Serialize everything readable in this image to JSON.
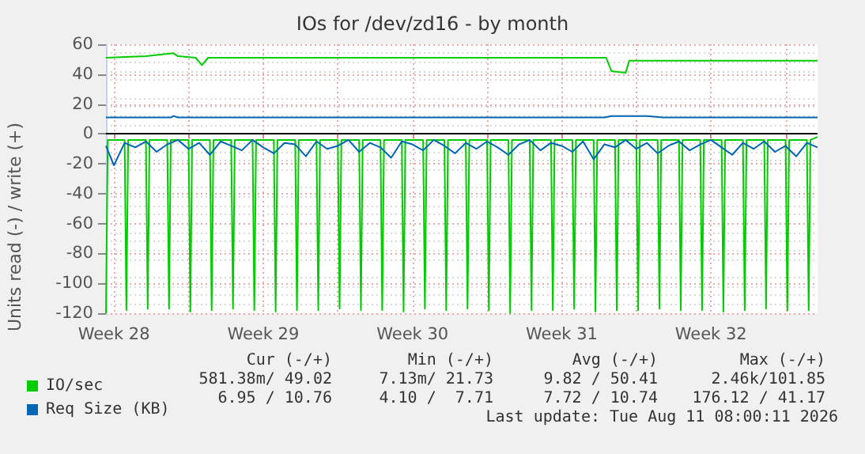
{
  "chart_data": {
    "type": "line",
    "title": "IOs for /dev/zd16 - by month",
    "ylabel": "Units read (-) / write (+)",
    "xlim": [
      "2026-07-09T03:00",
      "2026-08-11T12:00"
    ],
    "xticks": [
      {
        "value": "2026-07-09T12:00",
        "label": "Week 28"
      },
      {
        "value": "2026-07-13T00:00",
        "label": null
      },
      {
        "value": "2026-07-16T12:00",
        "label": "Week 29"
      },
      {
        "value": "2026-07-20T00:00",
        "label": null
      },
      {
        "value": "2026-07-23T12:00",
        "label": "Week 30"
      },
      {
        "value": "2026-07-27T00:00",
        "label": null
      },
      {
        "value": "2026-07-30T12:00",
        "label": "Week 31"
      },
      {
        "value": "2026-08-03T00:00",
        "label": null
      },
      {
        "value": "2026-08-06T12:00",
        "label": "Week 32"
      },
      {
        "value": "2026-08-10T00:00",
        "label": null
      }
    ],
    "ylim": [
      -120,
      60
    ],
    "yticks": [
      -120,
      -100,
      -80,
      -60,
      -40,
      -20,
      0,
      20,
      40,
      60
    ],
    "grid": true,
    "legend": "bottom left",
    "marker": "none",
    "line_style": "solid",
    "ref_lines": [
      {
        "axis": "y",
        "value": 0,
        "color": "#000000"
      }
    ],
    "annotations": [
      "Cur (-/+)",
      "Min (-/+)",
      "Avg (-/+)",
      "Max (-/+)",
      "581.38m/ 49.02",
      "7.13m/ 21.73",
      "9.82 / 50.41",
      "2.46k/101.85",
      "6.95 / 10.76",
      "4.10 /  7.71",
      "7.72 / 10.74",
      "176.12 / 41.17",
      "Last update: Tue Aug 11 08:00:11 2026"
    ],
    "x": [
      "2026-07-09T03:00",
      "2026-07-09T12:00",
      "2026-07-10T00:00",
      "2026-07-10T12:00",
      "2026-07-11T00:00",
      "2026-07-11T12:00",
      "2026-07-12T00:00",
      "2026-07-12T12:00",
      "2026-07-13T00:00",
      "2026-07-13T12:00",
      "2026-07-14T00:00",
      "2026-07-14T12:00",
      "2026-07-15T00:00",
      "2026-07-15T12:00",
      "2026-07-16T00:00",
      "2026-07-16T12:00",
      "2026-07-17T00:00",
      "2026-07-17T12:00",
      "2026-07-18T00:00",
      "2026-07-18T12:00",
      "2026-07-19T00:00",
      "2026-07-19T12:00",
      "2026-07-20T00:00",
      "2026-07-20T12:00",
      "2026-07-21T00:00",
      "2026-07-21T12:00",
      "2026-07-22T00:00",
      "2026-07-22T12:00",
      "2026-07-23T00:00",
      "2026-07-23T12:00",
      "2026-07-24T00:00",
      "2026-07-24T12:00",
      "2026-07-25T00:00",
      "2026-07-25T12:00",
      "2026-07-26T00:00",
      "2026-07-26T12:00",
      "2026-07-27T00:00",
      "2026-07-27T12:00",
      "2026-07-28T00:00",
      "2026-07-28T12:00",
      "2026-07-29T00:00",
      "2026-07-29T12:00",
      "2026-07-30T00:00",
      "2026-07-30T12:00",
      "2026-07-31T00:00",
      "2026-07-31T12:00",
      "2026-08-01T00:00",
      "2026-08-01T12:00",
      "2026-08-02T00:00",
      "2026-08-02T12:00",
      "2026-08-03T00:00",
      "2026-08-03T12:00",
      "2026-08-04T00:00",
      "2026-08-04T12:00",
      "2026-08-05T00:00",
      "2026-08-05T12:00",
      "2026-08-06T00:00",
      "2026-08-06T12:00",
      "2026-08-07T00:00",
      "2026-08-07T12:00",
      "2026-08-08T00:00",
      "2026-08-08T12:00",
      "2026-08-09T00:00",
      "2026-08-09T12:00",
      "2026-08-10T00:00",
      "2026-08-10T12:00",
      "2026-08-11T00:00",
      "2026-08-11T12:00"
    ],
    "series": [
      {
        "name": "IO/sec",
        "color": "#00cc00",
        "x": [
          "2026-07-09T03:00",
          "2026-07-11T00:00",
          "2026-07-12T07:00",
          "2026-07-12T12:00",
          "2026-07-13T08:00",
          "2026-07-13T15:00",
          "2026-07-13T22:00",
          "2026-07-20T00:00",
          "2026-07-27T00:00",
          "2026-08-01T14:00",
          "2026-08-01T20:00",
          "2026-08-02T12:00",
          "2026-08-02T16:00",
          "2026-08-06T00:00",
          "2026-08-11T12:00"
        ],
        "values": [
          51,
          52,
          54,
          52,
          51,
          46,
          51,
          51,
          51,
          51,
          42,
          41,
          49,
          49,
          49
        ]
      },
      {
        "color": "#00cc00",
        "x": [
          "2026-07-09T03:00",
          "2026-07-09T05:00",
          "2026-07-10T00:00",
          "2026-07-10T02:00",
          "2026-07-10T04:00",
          "2026-07-11T00:00",
          "2026-07-11T02:00",
          "2026-07-11T04:00",
          "2026-07-12T00:00",
          "2026-07-12T02:00",
          "2026-07-12T04:00",
          "2026-07-13T00:00",
          "2026-07-13T02:00",
          "2026-07-13T04:00",
          "2026-07-14T00:00",
          "2026-07-14T02:00",
          "2026-07-14T04:00",
          "2026-07-15T00:00",
          "2026-07-15T02:00",
          "2026-07-15T04:00",
          "2026-07-16T00:00",
          "2026-07-16T02:00",
          "2026-07-16T04:00",
          "2026-07-17T00:00",
          "2026-07-17T02:00",
          "2026-07-17T04:00",
          "2026-07-18T00:00",
          "2026-07-18T02:00",
          "2026-07-18T04:00",
          "2026-07-19T00:00",
          "2026-07-19T02:00",
          "2026-07-19T04:00",
          "2026-07-20T00:00",
          "2026-07-20T02:00",
          "2026-07-20T04:00",
          "2026-07-21T00:00",
          "2026-07-21T02:00",
          "2026-07-21T04:00",
          "2026-07-22T00:00",
          "2026-07-22T02:00",
          "2026-07-22T04:00",
          "2026-07-23T00:00",
          "2026-07-23T02:00",
          "2026-07-23T04:00",
          "2026-07-24T00:00",
          "2026-07-24T02:00",
          "2026-07-24T04:00",
          "2026-07-25T00:00",
          "2026-07-25T02:00",
          "2026-07-25T04:00",
          "2026-07-26T00:00",
          "2026-07-26T02:00",
          "2026-07-26T04:00",
          "2026-07-27T00:00",
          "2026-07-27T02:00",
          "2026-07-27T04:00",
          "2026-07-28T00:00",
          "2026-07-28T02:00",
          "2026-07-28T04:00",
          "2026-07-29T00:00",
          "2026-07-29T02:00",
          "2026-07-29T04:00",
          "2026-07-30T00:00",
          "2026-07-30T02:00",
          "2026-07-30T04:00",
          "2026-07-31T00:00",
          "2026-07-31T02:00",
          "2026-07-31T04:00",
          "2026-08-01T00:00",
          "2026-08-01T02:00",
          "2026-08-01T04:00",
          "2026-08-02T00:00",
          "2026-08-02T02:00",
          "2026-08-02T04:00",
          "2026-08-03T00:00",
          "2026-08-03T02:00",
          "2026-08-03T04:00",
          "2026-08-04T00:00",
          "2026-08-04T02:00",
          "2026-08-04T04:00",
          "2026-08-05T00:00",
          "2026-08-05T02:00",
          "2026-08-05T04:00",
          "2026-08-06T00:00",
          "2026-08-06T02:00",
          "2026-08-06T04:00",
          "2026-08-07T00:00",
          "2026-08-07T02:00",
          "2026-08-07T04:00",
          "2026-08-08T00:00",
          "2026-08-08T02:00",
          "2026-08-08T04:00",
          "2026-08-09T00:00",
          "2026-08-09T02:00",
          "2026-08-09T04:00",
          "2026-08-10T00:00",
          "2026-08-10T02:00",
          "2026-08-10T04:00",
          "2026-08-11T00:00",
          "2026-08-11T02:00",
          "2026-08-11T04:00",
          "2026-08-11T12:00"
        ],
        "values": [
          -120,
          -4,
          -4,
          -118,
          -4,
          -4,
          -117,
          -4,
          -4,
          -117,
          -4,
          -4,
          -119,
          -4,
          -4,
          -118,
          -4,
          -4,
          -117,
          -4,
          -4,
          -118,
          -4,
          -4,
          -119,
          -4,
          -4,
          -118,
          -4,
          -4,
          -118,
          -4,
          -4,
          -117,
          -4,
          -4,
          -118,
          -4,
          -4,
          -118,
          -4,
          -4,
          -119,
          -4,
          -4,
          -117,
          -4,
          -4,
          -118,
          -4,
          -4,
          -117,
          -4,
          -4,
          -118,
          -4,
          -4,
          -120,
          -4,
          -4,
          -118,
          -4,
          -4,
          -118,
          -4,
          -4,
          -117,
          -4,
          -4,
          -119,
          -4,
          -4,
          -118,
          -4,
          -4,
          -118,
          -4,
          -4,
          -117,
          -4,
          -4,
          -118,
          -4,
          -4,
          -118,
          -4,
          -4,
          -119,
          -4,
          -4,
          -118,
          -4,
          -4,
          -117,
          -4,
          -4,
          -118,
          -4,
          -4,
          -118,
          -4,
          -2
        ]
      },
      {
        "name": "Req Size (KB)",
        "color": "#0066b3",
        "x": [
          "2026-07-09T03:00",
          "2026-07-12T04:00",
          "2026-07-12T07:00",
          "2026-07-12T12:00",
          "2026-08-01T12:00",
          "2026-08-01T20:00",
          "2026-08-03T12:00",
          "2026-08-04T06:00",
          "2026-08-11T12:00"
        ],
        "values": [
          11,
          11,
          12,
          11,
          11,
          12,
          12,
          11,
          11
        ]
      },
      {
        "color": "#0066b3",
        "values": [
          -8,
          -21,
          -6,
          -9,
          -5,
          -12,
          -7,
          -4,
          -10,
          -6,
          -14,
          -5,
          -8,
          -11,
          -4,
          -9,
          -13,
          -6,
          -7,
          -15,
          -5,
          -10,
          -8,
          -4,
          -12,
          -6,
          -9,
          -16,
          -5,
          -7,
          -11,
          -4,
          -8,
          -13,
          -6,
          -10,
          -5,
          -9,
          -14,
          -7,
          -4,
          -11,
          -6,
          -8,
          -12,
          -5,
          -17,
          -7,
          -9,
          -4,
          -10,
          -6,
          -13,
          -8,
          -5,
          -11,
          -7,
          -4,
          -9,
          -14,
          -6,
          -10,
          -5,
          -12,
          -8,
          -15,
          -6,
          -9
        ]
      }
    ]
  }
}
